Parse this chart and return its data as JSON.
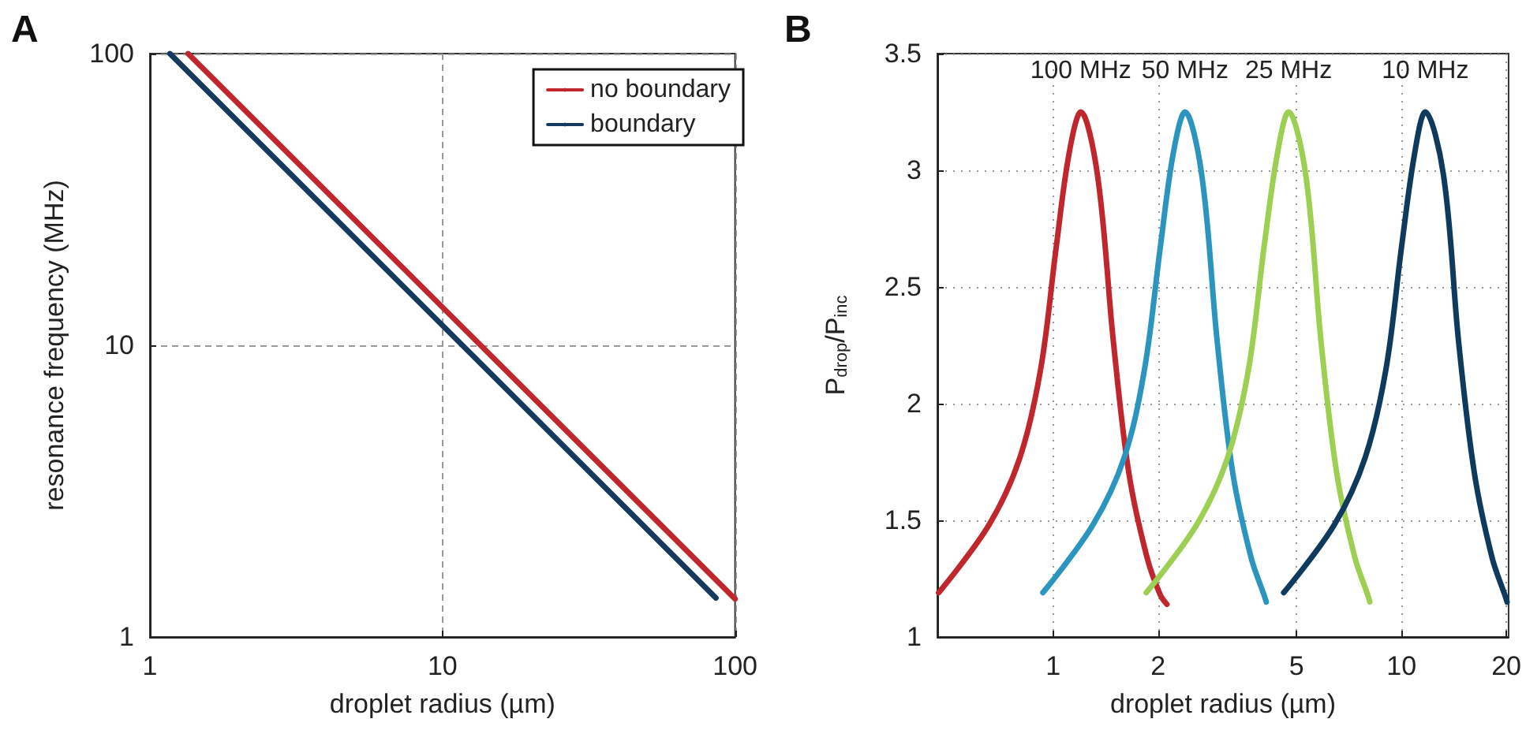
{
  "chart_data": [
    {
      "type": "line",
      "title": "A",
      "xlabel": "droplet radius (µm)",
      "ylabel": "resonance frequency (MHz)",
      "log": "xy",
      "xlim": [
        1,
        100
      ],
      "ylim": [
        1,
        100
      ],
      "xticks": [
        1,
        10,
        100
      ],
      "yticks": [
        1,
        10,
        100
      ],
      "grid": true,
      "legend": "top right",
      "marker": "none",
      "line_style": "solid",
      "series": [
        {
          "name": "no boundary",
          "color": "#c0272d",
          "x": [
            1.35,
            100
          ],
          "values": [
            100,
            1.35
          ]
        },
        {
          "name": "boundary",
          "color": "#163a5f",
          "x": [
            1.17,
            86
          ],
          "values": [
            100,
            1.36
          ]
        }
      ]
    },
    {
      "type": "line",
      "title": "B",
      "xlabel": "droplet radius (µm)",
      "ylabel": "P$_{drop}$/P$_{inc}$",
      "log": "x",
      "xlim": [
        0.465,
        20.3
      ],
      "ylim": [
        1,
        3.5
      ],
      "xticks": [
        1,
        2,
        5,
        10,
        20
      ],
      "yticks": [
        1,
        1.5,
        2,
        2.5,
        3,
        3.5
      ],
      "grid": true,
      "legend": false,
      "marker": "none",
      "line_style": "solid",
      "series": [
        {
          "name": "100 MHz",
          "color": "#c0272d",
          "x": [
            0.469,
            0.654,
            0.803,
            0.921,
            1.02,
            1.11,
            1.2,
            1.34,
            1.49,
            1.65,
            1.86,
            2.03,
            2.12
          ],
          "values": [
            1.19,
            1.48,
            1.77,
            2.15,
            2.67,
            3.07,
            3.25,
            2.98,
            2.26,
            1.7,
            1.34,
            1.18,
            1.14
          ]
        },
        {
          "name": "50 MHz",
          "color": "#2b95bf",
          "x": [
            0.934,
            1.3,
            1.6,
            1.83,
            2.03,
            2.21,
            2.39,
            2.67,
            2.96,
            3.28,
            3.7,
            4.03,
            4.09
          ],
          "values": [
            1.19,
            1.48,
            1.77,
            2.15,
            2.67,
            3.07,
            3.25,
            2.98,
            2.26,
            1.7,
            1.34,
            1.18,
            1.15
          ]
        },
        {
          "name": "25 MHz",
          "color": "#9dcf52",
          "x": [
            1.85,
            2.58,
            3.17,
            3.64,
            4.03,
            4.4,
            4.74,
            5.31,
            5.88,
            6.52,
            7.35,
            8.0,
            8.11
          ],
          "values": [
            1.19,
            1.48,
            1.77,
            2.15,
            2.67,
            3.07,
            3.25,
            2.98,
            2.26,
            1.7,
            1.34,
            1.18,
            1.15
          ]
        },
        {
          "name": "10 MHz",
          "color": "#0e3a5e",
          "x": [
            4.59,
            6.41,
            7.87,
            9.03,
            10.0,
            10.9,
            11.7,
            13.2,
            14.6,
            16.2,
            18.2,
            19.8,
            20.1
          ],
          "values": [
            1.19,
            1.48,
            1.77,
            2.15,
            2.67,
            3.07,
            3.25,
            2.98,
            2.26,
            1.7,
            1.34,
            1.18,
            1.15
          ]
        }
      ]
    }
  ]
}
